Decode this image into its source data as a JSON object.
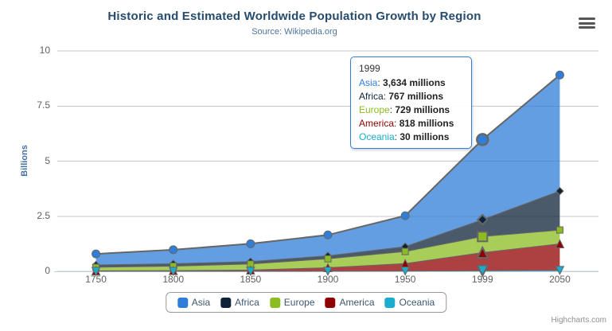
{
  "header": {
    "title": "Historic and Estimated Worldwide Population Growth by Region",
    "subtitle": "Source: Wikipedia.org"
  },
  "export_menu": {
    "icon": "hamburger-menu-icon"
  },
  "y_axis": {
    "title": "Billions",
    "tick_labels": [
      "0",
      "2.5",
      "5",
      "7.5",
      "10"
    ]
  },
  "x_axis": {
    "tick_labels": [
      "1750",
      "1800",
      "1850",
      "1900",
      "1950",
      "1999",
      "2050"
    ]
  },
  "legend": {
    "items": [
      "Asia",
      "Africa",
      "Europe",
      "America",
      "Oceania"
    ]
  },
  "tooltip": {
    "title": "1999",
    "border_color": "#2f7ed8",
    "rows": [
      {
        "name": "Asia",
        "color": "#2f7ed8",
        "value": "3,634 millions"
      },
      {
        "name": "Africa",
        "color": "#0d233a",
        "value": "767 millions"
      },
      {
        "name": "Europe",
        "color": "#8bbc21",
        "value": "729 millions"
      },
      {
        "name": "America",
        "color": "#910000",
        "value": "818 millions"
      },
      {
        "name": "Oceania",
        "color": "#1aadce",
        "value": "30 millions"
      }
    ]
  },
  "credits": {
    "label": "Highcharts.com"
  },
  "chart_data": {
    "type": "area",
    "stacking": "normal",
    "title": "Historic and Estimated Worldwide Population Growth by Region",
    "subtitle": "Source: Wikipedia.org",
    "xlabel": "",
    "ylabel": "Billions",
    "unit": "millions",
    "ylim": [
      0,
      10
    ],
    "y_ticks": [
      0,
      2.5,
      5,
      7.5,
      10
    ],
    "grid": true,
    "legend_position": "bottom",
    "categories": [
      1750,
      1800,
      1850,
      1900,
      1950,
      1999,
      2050
    ],
    "hover_category_index": 5,
    "series": [
      {
        "name": "Asia",
        "color": "#2f7ed8",
        "marker": "circle",
        "values": [
          502,
          635,
          809,
          947,
          1402,
          3634,
          5268
        ]
      },
      {
        "name": "Africa",
        "color": "#0d233a",
        "marker": "diamond",
        "values": [
          106,
          107,
          111,
          133,
          221,
          767,
          1766
        ]
      },
      {
        "name": "Europe",
        "color": "#8bbc21",
        "marker": "square",
        "values": [
          163,
          203,
          276,
          408,
          547,
          729,
          628
        ]
      },
      {
        "name": "America",
        "color": "#910000",
        "marker": "triangle",
        "values": [
          18,
          31,
          54,
          156,
          339,
          818,
          1201
        ]
      },
      {
        "name": "Oceania",
        "color": "#1aadce",
        "marker": "triangle-down",
        "values": [
          2,
          2,
          2,
          6,
          13,
          30,
          46
        ]
      }
    ]
  }
}
